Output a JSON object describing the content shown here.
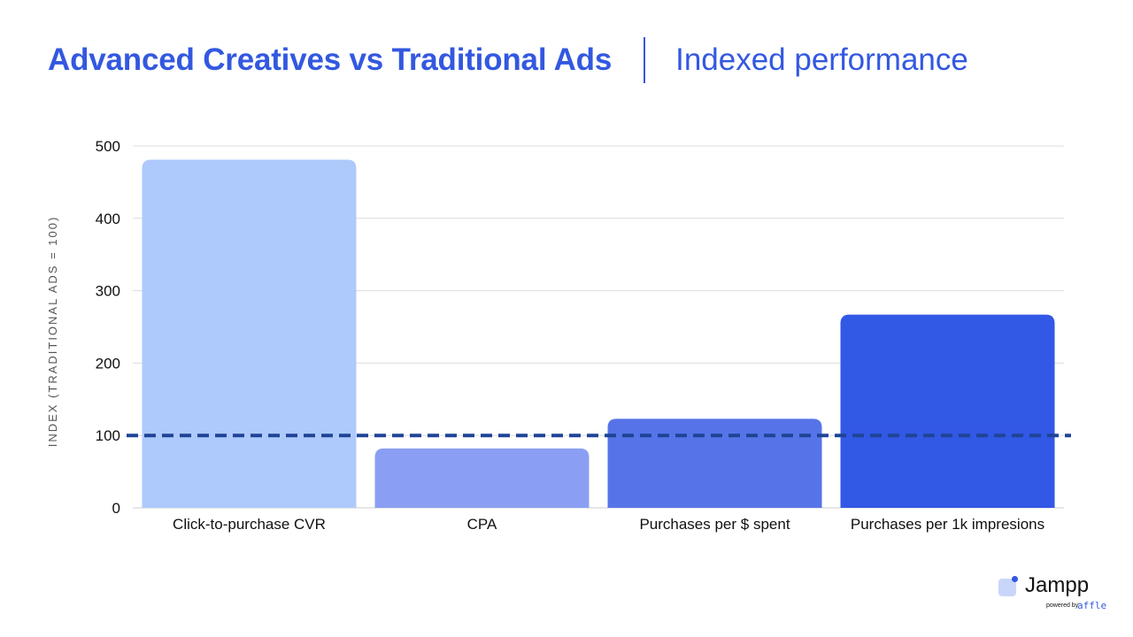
{
  "header": {
    "title": "Advanced Creatives vs Traditional Ads",
    "subtitle": "Indexed performance"
  },
  "chart_data": {
    "type": "bar",
    "categories": [
      "Click-to-purchase CVR",
      "CPA",
      "Purchases per $ spent",
      "Purchases per 1k impresions"
    ],
    "values": [
      481,
      82,
      123,
      267
    ],
    "bar_colors": [
      "#aec9fb",
      "#8a9ff3",
      "#5674e8",
      "#3258e6"
    ],
    "ylabel": "INDEX (TRADITIONAL ADS = 100)",
    "ylim": [
      0,
      500
    ],
    "yticks": [
      0,
      100,
      200,
      300,
      400,
      500
    ],
    "ytick_labels": [
      "0",
      "100",
      "200",
      "300",
      "400",
      "500"
    ],
    "reference_line": {
      "value": 100,
      "style": "dashed",
      "color": "#1f4496"
    },
    "grid": true,
    "legend": false
  },
  "logo": {
    "name": "Jampp",
    "powered_by": "powered by",
    "partner": "affle"
  }
}
